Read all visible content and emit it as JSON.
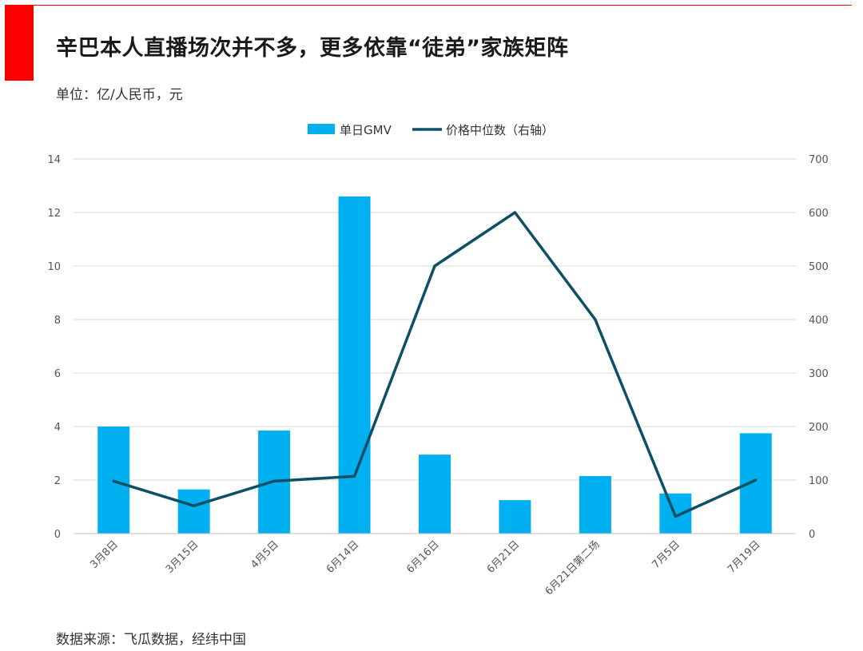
{
  "header": {
    "title": "辛巴本人直播场次并不多，更多依靠“徒弟”家族矩阵",
    "unit": "单位：亿/人民币，元"
  },
  "footer": {
    "source": "数据来源：飞瓜数据，经纬中国"
  },
  "colors": {
    "accent": "#ff0000",
    "bar": "#00b0f0",
    "line": "#0d4f63",
    "grid": "#d9d9d9"
  },
  "chart_data": {
    "type": "bar",
    "categories": [
      "3月8日",
      "3月15日",
      "4月5日",
      "6月14日",
      "6月16日",
      "6月21日",
      "6月21日第二场",
      "7月5日",
      "7月19日"
    ],
    "series": [
      {
        "name": "单日GMV",
        "type": "bar",
        "axis": "left",
        "values": [
          4.0,
          1.65,
          3.85,
          12.6,
          2.95,
          1.25,
          2.15,
          1.5,
          3.75
        ]
      },
      {
        "name": "价格中位数（右轴）",
        "type": "line",
        "axis": "right",
        "values": [
          98,
          52,
          98,
          107,
          500,
          600,
          400,
          32,
          100
        ]
      }
    ],
    "y_left": {
      "min": 0,
      "max": 14,
      "ticks": [
        0,
        2,
        4,
        6,
        8,
        10,
        12,
        14
      ]
    },
    "y_right": {
      "min": 0,
      "max": 700,
      "ticks": [
        0,
        100,
        200,
        300,
        400,
        500,
        600,
        700
      ]
    },
    "grid": true,
    "legend_position": "top-center"
  }
}
